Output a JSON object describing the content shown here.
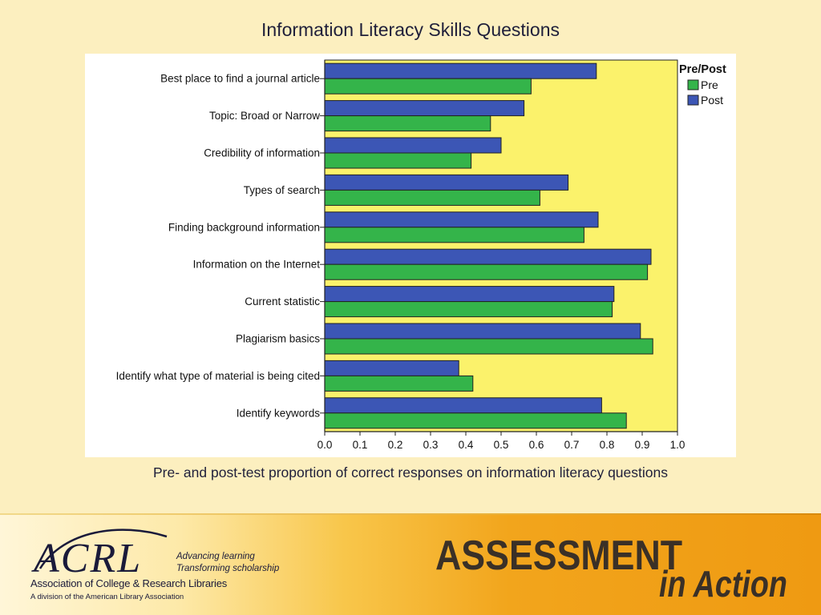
{
  "slide": {
    "title": "Information Literacy Skills Questions",
    "caption": "Pre- and post-test proportion of correct responses on information literacy questions"
  },
  "chart_data": {
    "type": "bar",
    "orientation": "horizontal",
    "categories": [
      "Best place to find a journal article",
      "Topic: Broad or Narrow",
      "Credibility of information",
      "Types of search",
      "Finding background information",
      "Information on the Internet",
      "Current statistic",
      "Plagiarism basics",
      "Identify what type of material is being cited",
      "Identify keywords"
    ],
    "series": [
      {
        "name": "Post",
        "color": "#3c56b5",
        "values": [
          0.77,
          0.565,
          0.5,
          0.69,
          0.775,
          0.925,
          0.82,
          0.895,
          0.38,
          0.785
        ]
      },
      {
        "name": "Pre",
        "color": "#34b44a",
        "values": [
          0.585,
          0.47,
          0.415,
          0.61,
          0.735,
          0.915,
          0.815,
          0.93,
          0.42,
          0.855
        ]
      }
    ],
    "xlim": [
      0.0,
      1.0
    ],
    "xticks": [
      "0.0",
      "0.1",
      "0.2",
      "0.3",
      "0.4",
      "0.5",
      "0.6",
      "0.7",
      "0.8",
      "0.9",
      "1.0"
    ],
    "legend": {
      "title": "Pre/Post",
      "position": "top-right",
      "entries": [
        "Pre",
        "Post"
      ]
    },
    "plot_background": "#fbf26b",
    "grid": false
  },
  "footer": {
    "logo_text": "ACRL",
    "org_name": "Association of College & Research Libraries",
    "division": "A division of the American Library Association",
    "tagline_1": "Advancing learning",
    "tagline_2": "Transforming scholarship",
    "brand_word_1": "ASSESSMENT",
    "brand_word_2": "in Action"
  }
}
